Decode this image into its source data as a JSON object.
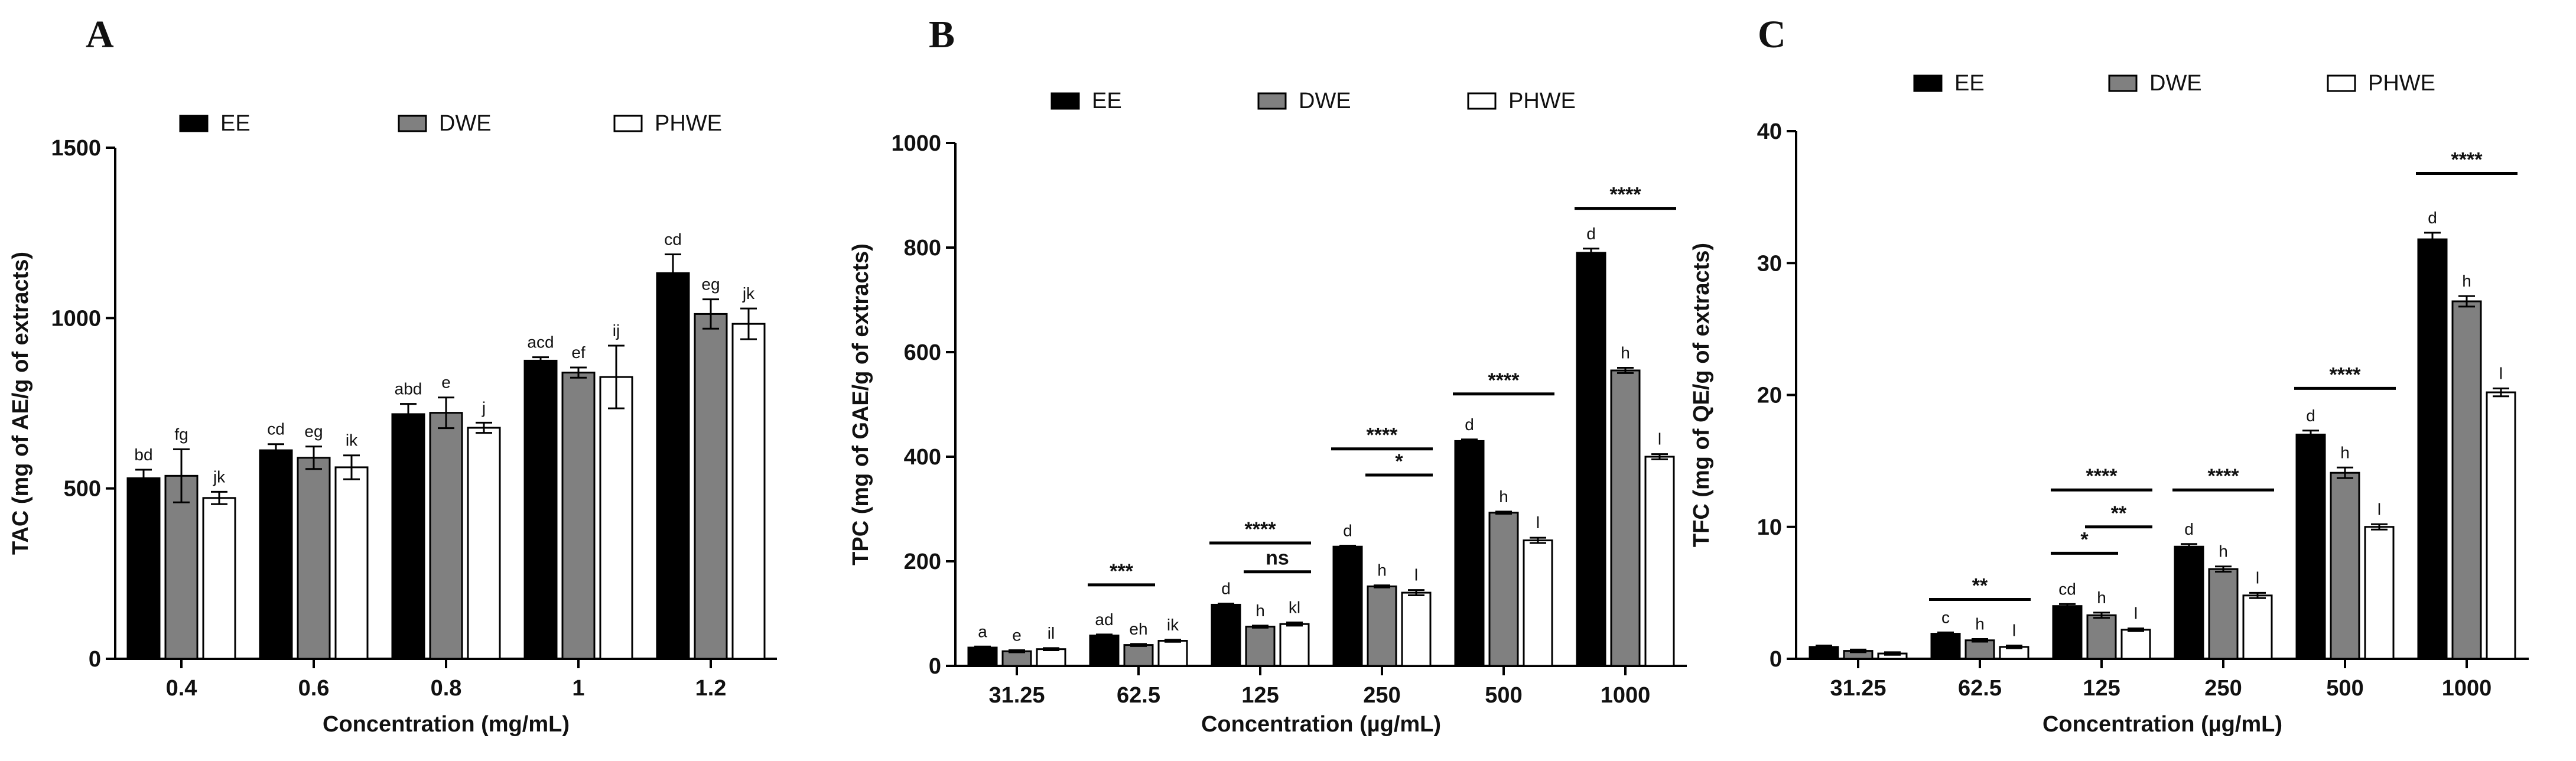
{
  "colors": {
    "EE": "#000000",
    "DWE": "#808080",
    "PHWE": "#ffffff",
    "stroke": "#000000"
  },
  "chart_data": [
    {
      "type": "bar",
      "panel": "A",
      "xlabel": "Concentration (mg/mL)",
      "ylabel": "TAC (mg of AE/g of extracts)",
      "ylim": [
        0,
        1500
      ],
      "yticks": [
        "0",
        "500",
        "1000",
        "1500"
      ],
      "categories": [
        "0.4",
        "0.6",
        "0.8",
        "1",
        "1.2"
      ],
      "series": [
        {
          "name": "EE",
          "values": [
            530,
            612,
            718,
            875,
            1132
          ],
          "errors": [
            25,
            18,
            30,
            10,
            55
          ],
          "labels": [
            "bd",
            "cd",
            "abd",
            "acd",
            "cd"
          ]
        },
        {
          "name": "DWE",
          "values": [
            537,
            590,
            722,
            840,
            1012
          ],
          "errors": [
            78,
            33,
            45,
            15,
            43
          ],
          "labels": [
            "fg",
            "eg",
            "e",
            "ef",
            "eg"
          ]
        },
        {
          "name": "PHWE",
          "values": [
            472,
            562,
            678,
            827,
            983
          ],
          "errors": [
            18,
            35,
            15,
            92,
            45
          ],
          "labels": [
            "jk",
            "ik",
            "j",
            "ij",
            "jk"
          ]
        }
      ],
      "significance": []
    },
    {
      "type": "bar",
      "panel": "B",
      "xlabel": "Concentration (µg/mL)",
      "ylabel": "TPC (mg of GAE/g of extracts)",
      "ylim": [
        0,
        1000
      ],
      "yticks": [
        "0",
        "200",
        "400",
        "600",
        "800",
        "1000"
      ],
      "categories": [
        "31.25",
        "62.5",
        "125",
        "250",
        "500",
        "1000"
      ],
      "series": [
        {
          "name": "EE",
          "values": [
            35,
            58,
            117,
            228,
            430,
            790
          ],
          "errors": [
            2,
            2,
            2,
            2,
            3,
            8
          ],
          "labels": [
            "a",
            "ad",
            "d",
            "d",
            "d",
            "d"
          ]
        },
        {
          "name": "DWE",
          "values": [
            28,
            40,
            75,
            152,
            293,
            565
          ],
          "errors": [
            2,
            2,
            2,
            2,
            2,
            5
          ],
          "labels": [
            "e",
            "eh",
            "h",
            "h",
            "h",
            "h"
          ]
        },
        {
          "name": "PHWE",
          "values": [
            32,
            48,
            80,
            140,
            240,
            400
          ],
          "errors": [
            2,
            2,
            3,
            5,
            5,
            5
          ],
          "labels": [
            "il",
            "ik",
            "kl",
            "l",
            "l",
            "l"
          ]
        }
      ],
      "significance": [
        {
          "category_index": 1,
          "from_series": 0,
          "to_series": 1,
          "y": 155,
          "label": "***"
        },
        {
          "category_index": 2,
          "from_series": 0,
          "to_series": 2,
          "y": 235,
          "label": "****"
        },
        {
          "category_index": 2,
          "from_series": 1,
          "to_series": 2,
          "y": 180,
          "label": "ns"
        },
        {
          "category_index": 3,
          "from_series": 0,
          "to_series": 2,
          "y": 415,
          "label": "****"
        },
        {
          "category_index": 3,
          "from_series": 1,
          "to_series": 2,
          "y": 365,
          "label": "*"
        },
        {
          "category_index": 4,
          "from_series": 0,
          "to_series": 2,
          "y": 520,
          "label": "****"
        },
        {
          "category_index": 5,
          "from_series": 0,
          "to_series": 2,
          "y": 875,
          "label": "****"
        }
      ]
    },
    {
      "type": "bar",
      "panel": "C",
      "xlabel": "Concentration (µg/mL)",
      "ylabel": "TFC (mg of QE/g of extracts)",
      "ylim": [
        0,
        40
      ],
      "yticks": [
        "0",
        "10",
        "20",
        "30",
        "40"
      ],
      "categories": [
        "31.25",
        "62.5",
        "125",
        "250",
        "500",
        "1000"
      ],
      "series": [
        {
          "name": "EE",
          "values": [
            0.9,
            1.9,
            4.0,
            8.5,
            17.0,
            31.8
          ],
          "errors": [
            0.1,
            0.1,
            0.15,
            0.2,
            0.3,
            0.5
          ],
          "labels": [
            "",
            "c",
            "cd",
            "d",
            "d",
            "d"
          ]
        },
        {
          "name": "DWE",
          "values": [
            0.6,
            1.4,
            3.3,
            6.8,
            14.1,
            27.1
          ],
          "errors": [
            0.1,
            0.1,
            0.2,
            0.2,
            0.4,
            0.4
          ],
          "labels": [
            "",
            "h",
            "h",
            "h",
            "h",
            "h"
          ]
        },
        {
          "name": "PHWE",
          "values": [
            0.4,
            0.9,
            2.2,
            4.8,
            10.0,
            20.2
          ],
          "errors": [
            0.1,
            0.1,
            0.1,
            0.2,
            0.2,
            0.3
          ],
          "labels": [
            "",
            "l",
            "l",
            "l",
            "l",
            "l"
          ]
        }
      ],
      "significance": [
        {
          "category_index": 1,
          "from_series": 0,
          "to_series": 2,
          "y": 4.5,
          "label": "**"
        },
        {
          "category_index": 2,
          "from_series": 0,
          "to_series": 2,
          "y": 12.8,
          "label": "****"
        },
        {
          "category_index": 2,
          "from_series": 1,
          "to_series": 2,
          "y": 10.0,
          "label": "**"
        },
        {
          "category_index": 2,
          "from_series": 0,
          "to_series": 1,
          "y": 8.0,
          "label": "*"
        },
        {
          "category_index": 3,
          "from_series": 0,
          "to_series": 2,
          "y": 12.8,
          "label": "****"
        },
        {
          "category_index": 4,
          "from_series": 0,
          "to_series": 2,
          "y": 20.5,
          "label": "****"
        },
        {
          "category_index": 5,
          "from_series": 0,
          "to_series": 2,
          "y": 36.8,
          "label": "****"
        }
      ]
    }
  ]
}
